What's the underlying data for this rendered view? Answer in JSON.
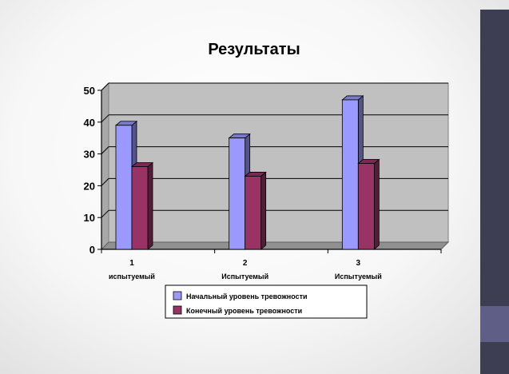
{
  "chart_data": {
    "type": "bar",
    "title": "Результаты",
    "categories": [
      {
        "number": "1",
        "label": "испытуемый"
      },
      {
        "number": "2",
        "label": "Испытуемый"
      },
      {
        "number": "3",
        "label": "Испытуемый"
      }
    ],
    "series": [
      {
        "name": "Начальный уровень тревожности",
        "values": [
          39,
          35,
          47
        ],
        "color": "#9999ff"
      },
      {
        "name": "Конечный уровень тревожности",
        "values": [
          26,
          23,
          27
        ],
        "color": "#993366"
      }
    ],
    "ylim": [
      0,
      50
    ],
    "yticks": [
      0,
      10,
      20,
      30,
      40,
      50
    ],
    "grid": true,
    "legend_position": "bottom",
    "plot_background": "#c0c0c0"
  }
}
